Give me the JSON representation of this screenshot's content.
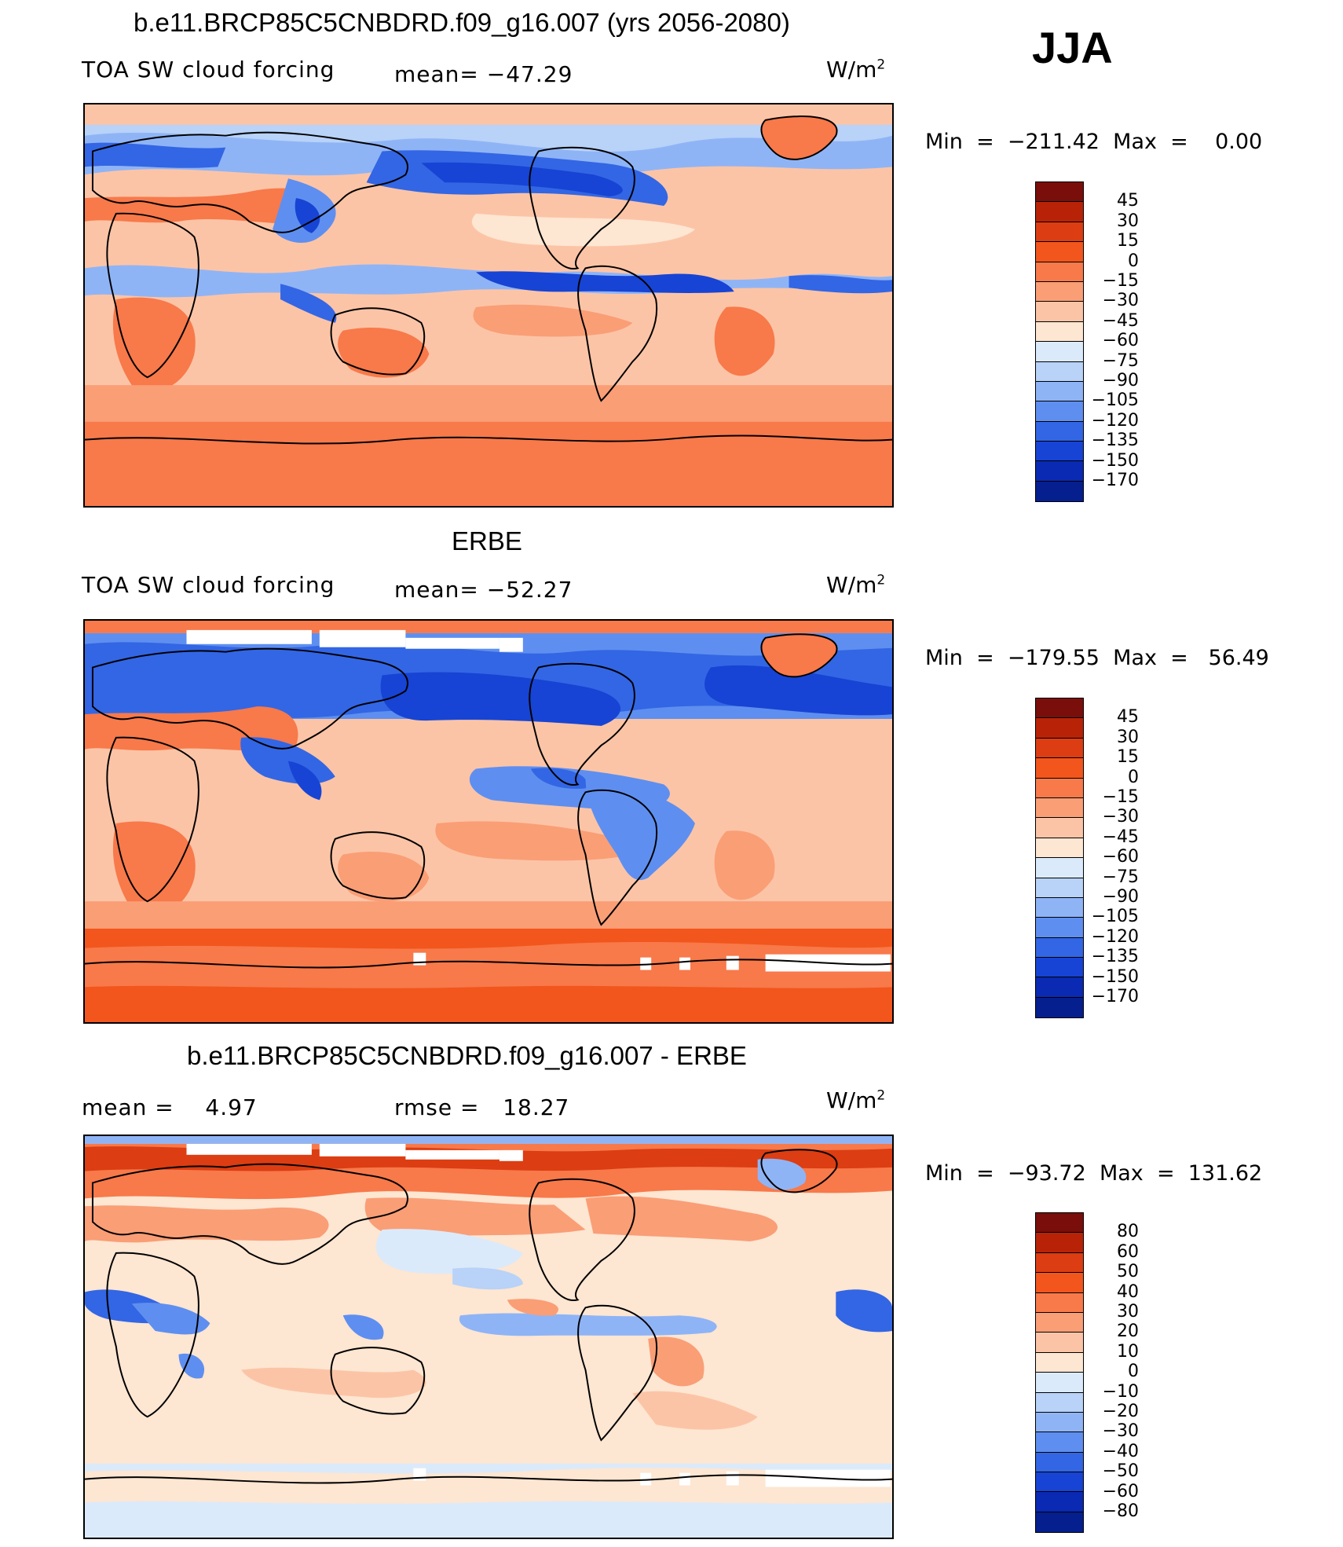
{
  "season": "JJA",
  "panel1": {
    "title": "b.e11.BRCP85C5CNBDRD.f09_g16.007 (yrs 2056-2080)",
    "field": "TOA SW cloud forcing",
    "mean_label": "mean=",
    "mean": "−47.29",
    "units": "W/m",
    "min_label": "Min",
    "min": "−211.42",
    "max_label": "Max",
    "max": "0.00",
    "levels": [
      "45",
      "30",
      "15",
      "0",
      "−15",
      "−30",
      "−45",
      "−60",
      "−75",
      "−90",
      "−105",
      "−120",
      "−135",
      "−150",
      "−170"
    ]
  },
  "panel2": {
    "title": "ERBE",
    "field": "TOA SW cloud forcing",
    "mean_label": "mean=",
    "mean": "−52.27",
    "units": "W/m",
    "min_label": "Min",
    "min": "−179.55",
    "max_label": "Max",
    "max": "56.49",
    "levels": [
      "45",
      "30",
      "15",
      "0",
      "−15",
      "−30",
      "−45",
      "−60",
      "−75",
      "−90",
      "−105",
      "−120",
      "−135",
      "−150",
      "−170"
    ]
  },
  "panel3": {
    "title": "b.e11.BRCP85C5CNBDRD.f09_g16.007 - ERBE",
    "mean_label": "mean =",
    "mean": "4.97",
    "rmse_label": "rmse =",
    "rmse": "18.27",
    "units": "W/m",
    "min_label": "Min",
    "min": "−93.72",
    "max_label": "Max",
    "max": "131.62",
    "levels": [
      "80",
      "60",
      "50",
      "40",
      "30",
      "20",
      "10",
      "0",
      "−10",
      "−20",
      "−30",
      "−40",
      "−50",
      "−60",
      "−80"
    ]
  },
  "colors": {
    "palette": [
      "#7a0e0a",
      "#b82308",
      "#dc3d12",
      "#f2561c",
      "#f8794a",
      "#fa9e76",
      "#fcc4a6",
      "#fde6d2",
      "#dbeafa",
      "#b8d2f8",
      "#8fb4f6",
      "#5e8ff0",
      "#3366e4",
      "#1744d4",
      "#0a2ab4",
      "#051f8e"
    ]
  }
}
